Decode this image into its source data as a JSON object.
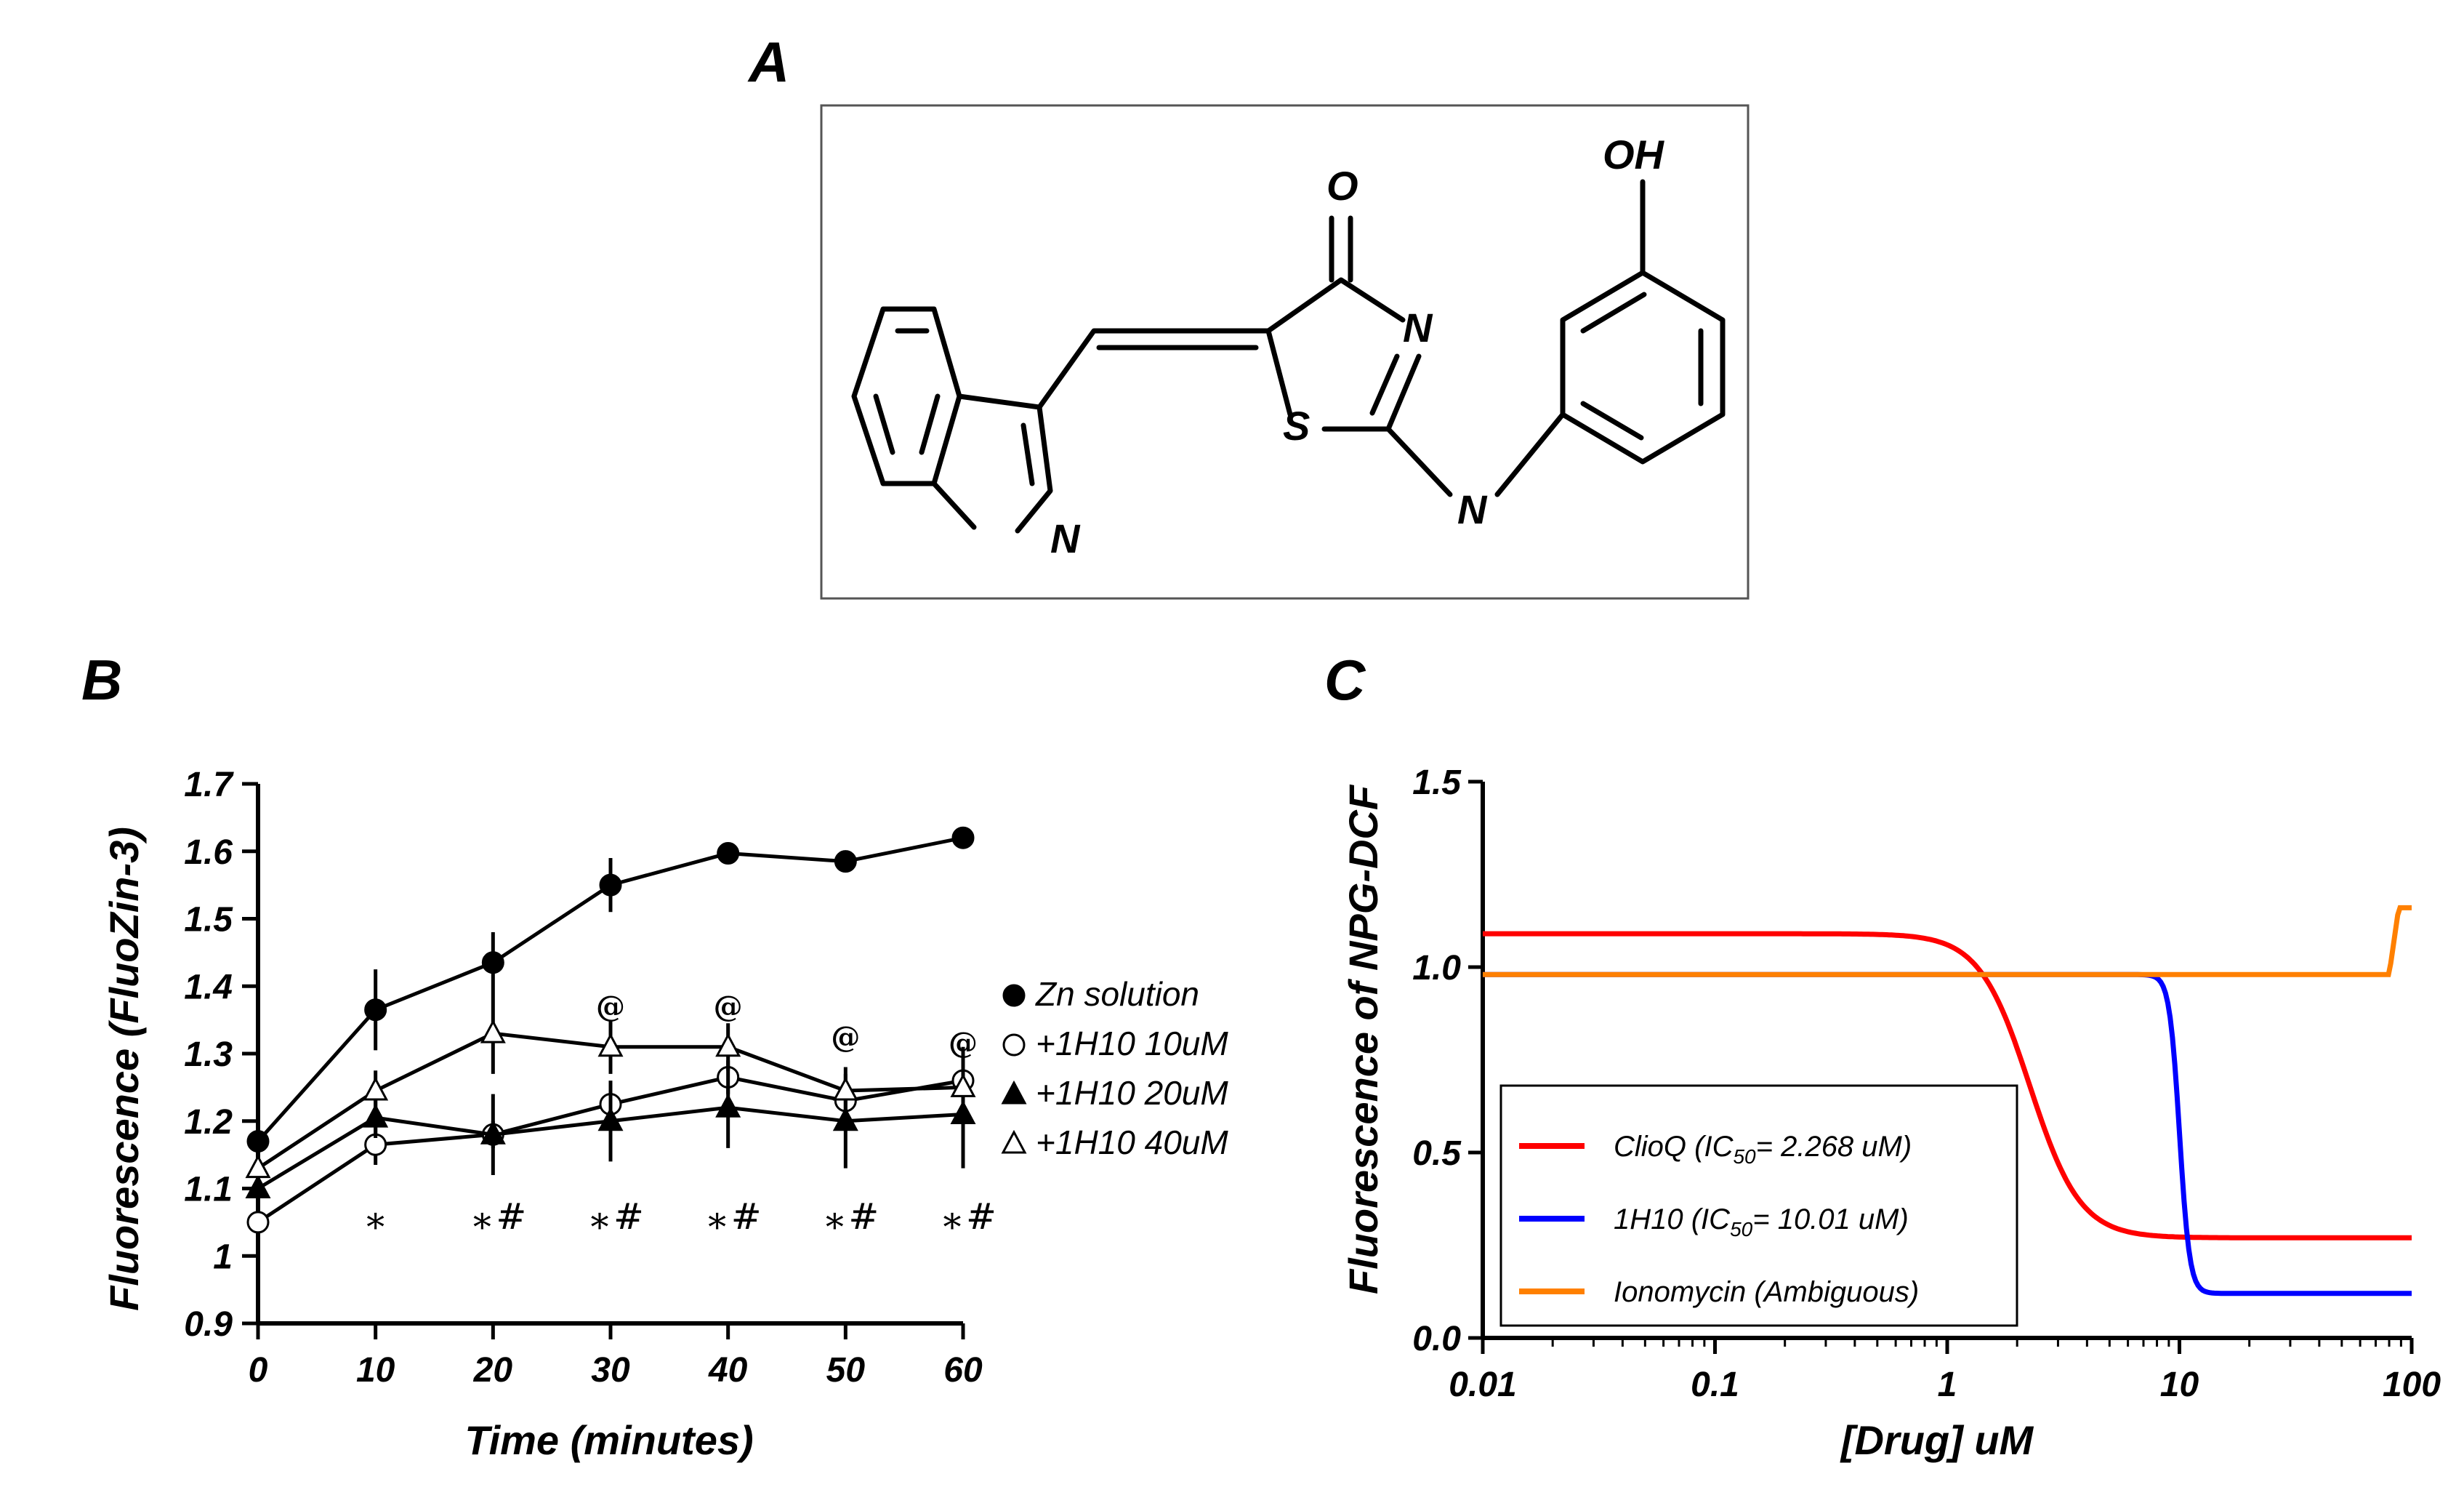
{
  "panels": {
    "a_label": "A",
    "b_label": "B",
    "c_label": "C"
  },
  "molecule": {
    "atoms": {
      "oh": "OH",
      "o": "O",
      "n_ring": "N",
      "s": "S",
      "n_amine": "N",
      "n_indole": "N"
    }
  },
  "chart_data": [
    {
      "type": "line",
      "xlabel": "Time (minutes)",
      "ylabel": "Fluorescence (FluoZin-3)",
      "x": [
        0,
        10,
        20,
        30,
        40,
        50,
        60
      ],
      "x_ticks": [
        "0",
        "10",
        "20",
        "30",
        "40",
        "50",
        "60"
      ],
      "xlim": [
        0,
        60
      ],
      "ylim": [
        0.9,
        1.7
      ],
      "y_ticks": [
        "0.9",
        "1",
        "1.1",
        "1.2",
        "1.3",
        "1.4",
        "1.5",
        "1.6",
        "1.7"
      ],
      "grid": false,
      "legend_position": "right",
      "series": [
        {
          "name": "Zn solution",
          "marker": "filled-circle",
          "values": [
            1.17,
            1.365,
            1.435,
            1.55,
            1.597,
            1.585,
            1.62
          ],
          "errors": [
            0.015,
            0.06,
            0.045,
            0.04,
            0.015,
            0.005,
            0.015
          ]
        },
        {
          "name": "+1H10 10uM",
          "marker": "open-circle",
          "values": [
            1.05,
            1.165,
            1.18,
            1.225,
            1.265,
            1.23,
            1.26
          ],
          "errors": [
            0.01,
            0.03,
            0.02,
            0.03,
            0.025,
            0.03,
            0.015
          ]
        },
        {
          "name": "+1H10 20uM",
          "marker": "filled-triangle",
          "values": [
            1.1,
            1.205,
            1.18,
            1.2,
            1.22,
            1.2,
            1.21
          ],
          "errors": [
            0.02,
            0.03,
            0.06,
            0.06,
            0.06,
            0.07,
            0.08
          ]
        },
        {
          "name": "+1H10 40uM",
          "marker": "open-triangle",
          "values": [
            1.13,
            1.245,
            1.33,
            1.31,
            1.31,
            1.245,
            1.25
          ],
          "errors": [
            0.01,
            0.03,
            0.06,
            0.04,
            0.035,
            0.035,
            0.06
          ]
        }
      ],
      "annotations": {
        "star": "*",
        "hash": "#",
        "at": "@",
        "star_times": [
          10,
          20,
          30,
          40,
          50,
          60
        ],
        "hash_times": [
          20,
          30,
          40,
          50,
          60
        ],
        "at_times": [
          30,
          40,
          50,
          60
        ]
      }
    },
    {
      "type": "line",
      "xlabel": "[Drug] uM",
      "ylabel": "Fluorescence of NPG-DCF",
      "x_scale": "log",
      "xlim": [
        0.01,
        100
      ],
      "x_ticks": [
        "0.01",
        "0.1",
        "1",
        "10",
        "100"
      ],
      "ylim": [
        0.0,
        1.5
      ],
      "y_ticks": [
        "0.0",
        "0.5",
        "1.0",
        "1.5"
      ],
      "grid": false,
      "legend_position": "bottom-left",
      "series": [
        {
          "name_prefix": "ClioQ (IC",
          "name_sub": "50",
          "name_suffix": "= 2.268 uM)",
          "color": "#ff0000",
          "top": 1.09,
          "bottom": 0.27,
          "ic50": 2.268,
          "hill": 4
        },
        {
          "name_prefix": "1H10 (IC",
          "name_sub": "50",
          "name_suffix": "= 10.01 uM)",
          "color": "#0000ff",
          "top": 0.98,
          "bottom": 0.12,
          "ic50": 10.01,
          "hill": 20
        },
        {
          "name": "Ionomycin (Ambiguous)",
          "color": "#ff8000",
          "baseline": 0.98,
          "step_start_x": 80,
          "step_end_x": 88,
          "final": 1.16
        }
      ]
    }
  ]
}
